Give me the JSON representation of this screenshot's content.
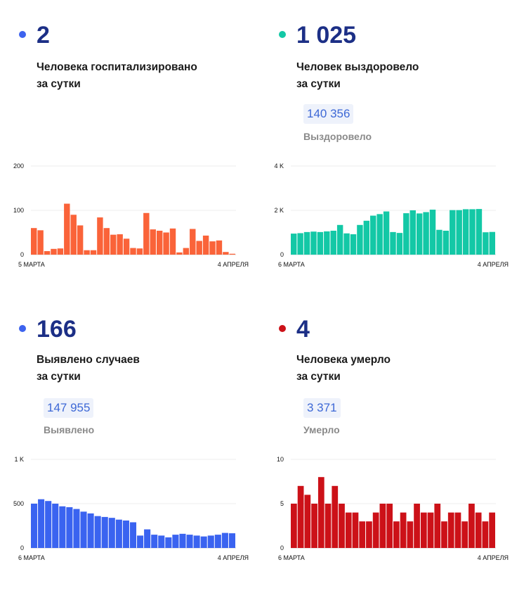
{
  "panels": [
    {
      "value": "2",
      "desc_line1": "Человека госпитализировано",
      "desc_line2": "за сутки",
      "total": null,
      "total_label": null,
      "color": "#fa6339",
      "dot_color": "#3d63ee"
    },
    {
      "value": "1 025",
      "desc_line1": "Человек выздоровело",
      "desc_line2": "за сутки",
      "total": "140 356",
      "total_label": "Выздоровело",
      "color": "#13c8a6",
      "dot_color": "#13c8a6"
    },
    {
      "value": "166",
      "desc_line1": "Выявлено случаев",
      "desc_line2": "за сутки",
      "total": "147 955",
      "total_label": "Выявлено",
      "color": "#3a63f0",
      "dot_color": "#3d63ee"
    },
    {
      "value": "4",
      "desc_line1": "Человека умерло",
      "desc_line2": "за сутки",
      "total": "3 371",
      "total_label": "Умерло",
      "color": "#cc1118",
      "dot_color": "#cc1118"
    }
  ],
  "chart_data": [
    {
      "type": "bar",
      "title": "",
      "x_start_label": "5 МАРТА",
      "x_end_label": "4 АПРЕЛЯ",
      "yticks": [
        "200",
        "100",
        "0"
      ],
      "ylim": [
        0,
        200
      ],
      "values": [
        60,
        55,
        8,
        13,
        14,
        115,
        90,
        66,
        10,
        10,
        84,
        60,
        45,
        46,
        36,
        15,
        14,
        94,
        57,
        54,
        50,
        59,
        5,
        15,
        58,
        31,
        43,
        30,
        32,
        6,
        2
      ]
    },
    {
      "type": "bar",
      "title": "",
      "x_start_label": "6 МАРТА",
      "x_end_label": "4 АПРЕЛЯ",
      "yticks": [
        "4 K",
        "2 K",
        "0"
      ],
      "ylim": [
        0,
        4000
      ],
      "values": [
        950,
        970,
        1020,
        1040,
        1020,
        1050,
        1080,
        1340,
        960,
        920,
        1340,
        1530,
        1760,
        1830,
        1950,
        1020,
        980,
        1870,
        2000,
        1860,
        1920,
        2030,
        1120,
        1080,
        2010,
        2010,
        2050,
        2050,
        2060,
        1010,
        1025
      ]
    },
    {
      "type": "bar",
      "title": "",
      "x_start_label": "6 МАРТА",
      "x_end_label": "4 АПРЕЛЯ",
      "yticks": [
        "1 K",
        "500",
        "0"
      ],
      "ylim": [
        0,
        1000
      ],
      "values": [
        500,
        550,
        530,
        500,
        470,
        460,
        440,
        410,
        390,
        360,
        350,
        340,
        320,
        310,
        290,
        140,
        210,
        150,
        140,
        120,
        150,
        160,
        150,
        140,
        130,
        140,
        150,
        170,
        166
      ]
    },
    {
      "type": "bar",
      "title": "",
      "x_start_label": "6 МАРТА",
      "x_end_label": "4 АПРЕЛЯ",
      "yticks": [
        "10",
        "5",
        "0"
      ],
      "ylim": [
        0,
        10
      ],
      "values": [
        5,
        7,
        6,
        5,
        8,
        5,
        7,
        5,
        4,
        4,
        3,
        3,
        4,
        5,
        5,
        3,
        4,
        3,
        5,
        4,
        4,
        5,
        3,
        4,
        4,
        3,
        5,
        4,
        3,
        4
      ]
    }
  ]
}
